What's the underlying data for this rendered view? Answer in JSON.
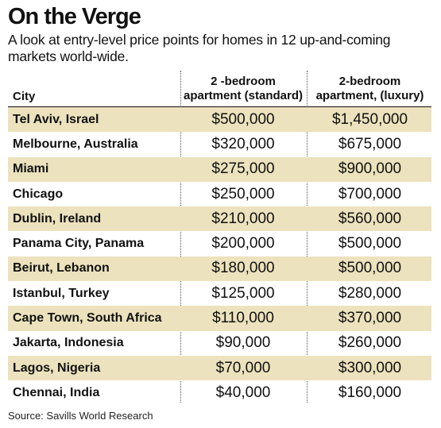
{
  "title": "On the Verge",
  "subtitle": "A look at entry-level price points for homes in 12 up-and-coming markets world-wide.",
  "source": "Source: Savills World Research",
  "chart_data": {
    "type": "table",
    "columns": [
      {
        "label": "City"
      },
      {
        "label_line1": "2 -bedroom",
        "label_line2": "apartment (standard)"
      },
      {
        "label_line1": "2-bedroom",
        "label_line2": "apartment, (luxury)"
      }
    ],
    "rows": [
      {
        "city": "Tel Aviv, Israel",
        "standard": "$500,000",
        "luxury": "$1,450,000"
      },
      {
        "city": "Melbourne, Australia",
        "standard": "$320,000",
        "luxury": "$675,000"
      },
      {
        "city": "Miami",
        "standard": "$275,000",
        "luxury": "$900,000"
      },
      {
        "city": "Chicago",
        "standard": "$250,000",
        "luxury": "$700,000"
      },
      {
        "city": "Dublin, Ireland",
        "standard": "$210,000",
        "luxury": "$560,000"
      },
      {
        "city": "Panama City, Panama",
        "standard": "$200,000",
        "luxury": "$500,000"
      },
      {
        "city": "Beirut, Lebanon",
        "standard": "$180,000",
        "luxury": "$500,000"
      },
      {
        "city": "Istanbul, Turkey",
        "standard": "$125,000",
        "luxury": "$280,000"
      },
      {
        "city": "Cape Town, South Africa",
        "standard": "$110,000",
        "luxury": "$370,000"
      },
      {
        "city": "Jakarta, Indonesia",
        "standard": "$90,000",
        "luxury": "$260,000"
      },
      {
        "city": "Lagos, Nigeria",
        "standard": "$70,000",
        "luxury": "$300,000"
      },
      {
        "city": "Chennai, India",
        "standard": "$40,000",
        "luxury": "$160,000"
      }
    ],
    "row_shading": "alternating",
    "shade_color": "#ece2bd"
  }
}
